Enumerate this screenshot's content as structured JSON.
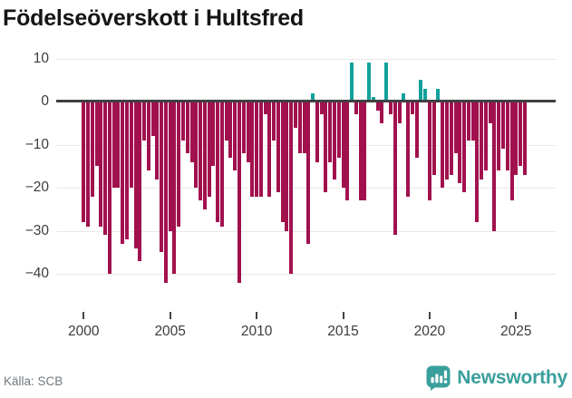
{
  "title": "Födelseöverskott i Hultsfred",
  "source": "Källa: SCB",
  "logo": {
    "text": "Newsworthy",
    "color": "#3a9f9c"
  },
  "chart_data": {
    "type": "bar",
    "title": "Födelseöverskott i Hultsfred",
    "frequency": "quarterly",
    "x_start": "2000-Q1",
    "x_end": "2025-Q3",
    "values": [
      -28,
      -29,
      -22,
      -15,
      -29,
      -31,
      -40,
      -20,
      -20,
      -33,
      -32,
      -20,
      -34,
      -37,
      -9,
      -16,
      -8,
      -18,
      -35,
      -42,
      -30,
      -40,
      -29,
      -9,
      -12,
      -14,
      -20,
      -23,
      -25,
      -22,
      -15,
      -28,
      -29,
      -9,
      -13,
      -16,
      -42,
      -12,
      -14,
      -22,
      -22,
      -22,
      -3,
      -22,
      -9,
      -21,
      -28,
      -30,
      -40,
      -6,
      -12,
      -12,
      -33,
      2,
      -14,
      -3,
      -21,
      -14,
      -18,
      -13,
      -20,
      -23,
      9,
      -3,
      -23,
      -23,
      9,
      1,
      -2,
      -5,
      9,
      -3,
      -31,
      -5,
      2,
      -22,
      -3,
      -13,
      5,
      3,
      -23,
      -17,
      3,
      -20,
      -18,
      -17,
      -12,
      -19,
      -21,
      -9,
      -9,
      -28,
      -18,
      -16,
      -5,
      -30,
      -16,
      -11,
      -16,
      -23,
      -17,
      -15,
      -17
    ],
    "x_tick_years": [
      2000,
      2005,
      2010,
      2015,
      2020,
      2025
    ],
    "y_ticks": [
      10,
      0,
      -10,
      -20,
      -30,
      -40
    ],
    "ylim": [
      -45,
      12
    ],
    "grid": "horizontal",
    "legend": "none",
    "colors": {
      "positive": "#12a19a",
      "negative": "#a1114e"
    }
  }
}
